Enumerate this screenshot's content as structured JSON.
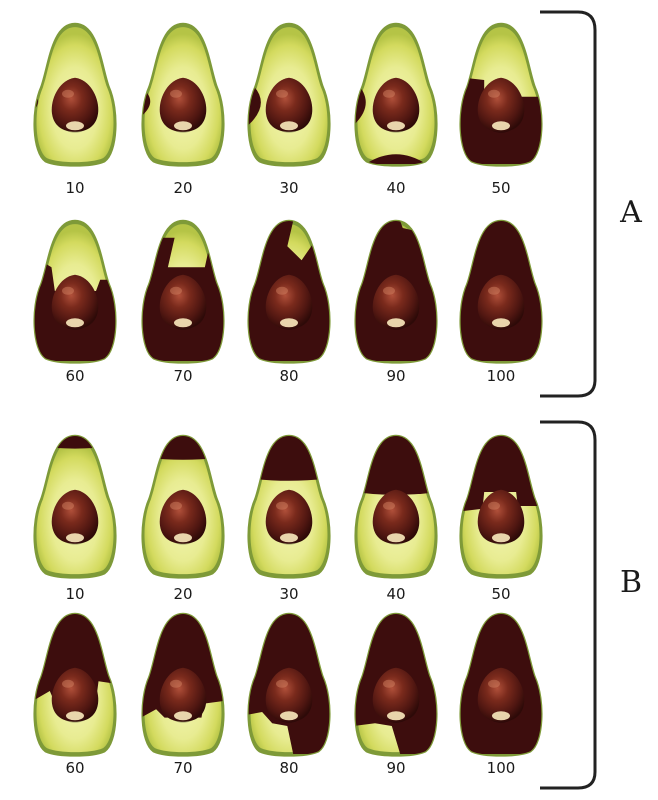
{
  "header": {
    "partial_text": ""
  },
  "colors": {
    "flesh_light": "#eef0a2",
    "flesh_mid": "#d6dc62",
    "skin": "#7e9a38",
    "browning": "#3d0d0d",
    "seed": "#4a1410"
  },
  "groups": [
    {
      "label": "A",
      "pattern": "edge-browning",
      "severities": [
        "10",
        "20",
        "30",
        "40",
        "50",
        "60",
        "70",
        "80",
        "90",
        "100"
      ]
    },
    {
      "label": "B",
      "pattern": "top-down-browning",
      "severities": [
        "10",
        "20",
        "30",
        "40",
        "50",
        "60",
        "70",
        "80",
        "90",
        "100"
      ]
    }
  ]
}
